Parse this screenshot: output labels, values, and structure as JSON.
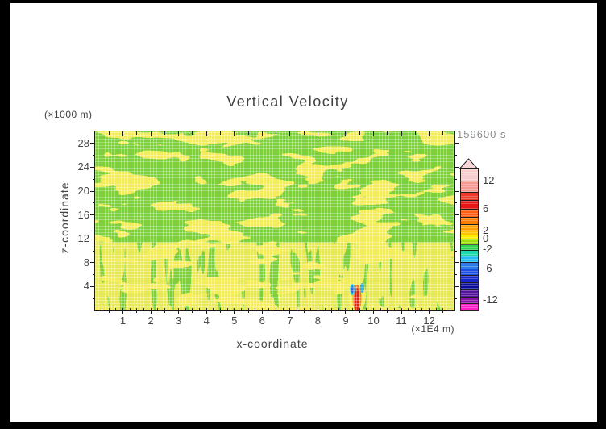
{
  "title": "Vertical Velocity",
  "time_label": "159600 s",
  "axes": {
    "x": {
      "label": "x-coordinate",
      "unit": "(×1E4 m)",
      "ticks": [
        "1",
        "2",
        "3",
        "4",
        "5",
        "6",
        "7",
        "8",
        "9",
        "10",
        "11",
        "12"
      ],
      "range": [
        0,
        12.88
      ],
      "minor_step": 0.5,
      "inner_minor_step": 0.25
    },
    "y": {
      "label": "z-coordinate",
      "unit": "(×1000 m)",
      "ticks": [
        "4",
        "8",
        "12",
        "16",
        "20",
        "24",
        "28"
      ],
      "minor_ticks": [
        2,
        6,
        10,
        14,
        18,
        22,
        26
      ],
      "range": [
        0,
        30
      ]
    }
  },
  "colorbar": {
    "arrow_fill": "#f6d6d6",
    "labels": [
      {
        "text": "12",
        "y": 224
      },
      {
        "text": "6",
        "y": 259
      },
      {
        "text": "2",
        "y": 286
      },
      {
        "text": "0",
        "y": 296
      },
      {
        "text": "-2",
        "y": 309
      },
      {
        "text": "-6",
        "y": 333
      },
      {
        "text": "-12",
        "y": 372
      }
    ],
    "bands": [
      {
        "h": 16,
        "color": "#f8cdcd"
      },
      {
        "h": 14,
        "color": "#f49a92"
      },
      {
        "h": 10,
        "color": "#ee3a2a"
      },
      {
        "h": 11,
        "color": "#e81616"
      },
      {
        "h": 10,
        "color": "#fd5c11"
      },
      {
        "h": 9,
        "color": "#ff7d00"
      },
      {
        "h": 8,
        "color": "#ffa000"
      },
      {
        "h": 5,
        "color": "#ffc400"
      },
      {
        "h": 5,
        "color": "#fcec00"
      },
      {
        "h": 7,
        "color": "#a0e00d"
      },
      {
        "h": 7,
        "color": "#2ed34e"
      },
      {
        "h": 7,
        "color": "#1edcaa"
      },
      {
        "h": 8,
        "color": "#22bdf2"
      },
      {
        "h": 8,
        "color": "#2e7ce8"
      },
      {
        "h": 8,
        "color": "#1d4fe0"
      },
      {
        "h": 9,
        "color": "#1527c8"
      },
      {
        "h": 9,
        "color": "#0c0c9c"
      },
      {
        "h": 9,
        "color": "#52129e"
      },
      {
        "h": 8,
        "color": "#8812a8"
      },
      {
        "h": 9,
        "color": "#fb1fc4"
      }
    ]
  },
  "palette": {
    "field_positive_yellow": "#f6ee4e",
    "field_negative_green": "#79d42f",
    "plume_core_red": "#e82010",
    "plume_orange": "#ff7d16",
    "plume_cyan": "#20c8e8",
    "plume_blue": "#2f66e0",
    "frame_black": "#000000",
    "canvas_white": "#ffffff"
  },
  "chart_data": {
    "type": "heatmap",
    "title": "Vertical Velocity",
    "xlabel": "x-coordinate",
    "x_unit": "(×1E4 m)",
    "xlim": [
      0,
      12.9
    ],
    "x_ticks": [
      1,
      2,
      3,
      4,
      5,
      6,
      7,
      8,
      9,
      10,
      11,
      12
    ],
    "ylabel": "z-coordinate",
    "y_unit": "(×1000 m)",
    "ylim": [
      0,
      30
    ],
    "y_ticks": [
      4,
      8,
      12,
      16,
      20,
      24,
      28
    ],
    "time_stamp": "159600 s",
    "legend_position": "right-colorbar",
    "grid": false,
    "colorbar_tick_labels": [
      12,
      6,
      2,
      0,
      -2,
      -6,
      -12
    ],
    "colorbar_colors_top_to_bottom": [
      "#f8cdcd",
      "#f49a92",
      "#ee3a2a",
      "#e81616",
      "#fd5c11",
      "#ff7d00",
      "#ffa000",
      "#ffc400",
      "#fcec00",
      "#a0e00d",
      "#2ed34e",
      "#1edcaa",
      "#22bdf2",
      "#2e7ce8",
      "#1d4fe0",
      "#1527c8",
      "#0c0c9c",
      "#52129e",
      "#8812a8",
      "#fb1fc4"
    ],
    "field_summary": "Domain filled with weak alternating vertical velocity: yellow patches (0 to +2) interwoven with green patches (0 to -2); horizontally elongated wave bands aloft (z ~ 8-30), fine vertical streaks below z ~ 5.",
    "notable_feature": {
      "x": 9.35,
      "z": 0.5,
      "z_top": 5,
      "description": "Isolated strong updraft core (red/orange, > +6) rising from the surface, flanked left and right by small downdraft cores (cyan/blue, < -2)."
    }
  }
}
